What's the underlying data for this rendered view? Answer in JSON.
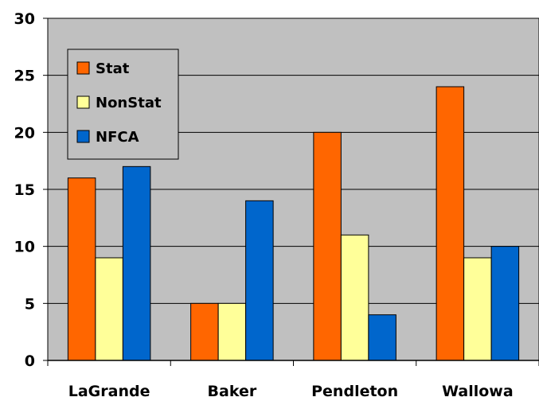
{
  "chart_data": {
    "type": "bar",
    "categories": [
      "LaGrande",
      "Baker",
      "Pendleton",
      "Wallowa"
    ],
    "series": [
      {
        "name": "Stat",
        "values": [
          16,
          5,
          20,
          24
        ],
        "color": "#FF6600"
      },
      {
        "name": "NonStat",
        "values": [
          9,
          5,
          11,
          9
        ],
        "color": "#FFFF99"
      },
      {
        "name": "NFCA",
        "values": [
          17,
          14,
          4,
          10
        ],
        "color": "#0066CC"
      }
    ],
    "ylim": [
      0,
      30
    ],
    "yticks": [
      0,
      5,
      10,
      15,
      20,
      25,
      30
    ],
    "grid": true,
    "legend_position": "top-left",
    "plot_background": "#C0C0C0"
  }
}
